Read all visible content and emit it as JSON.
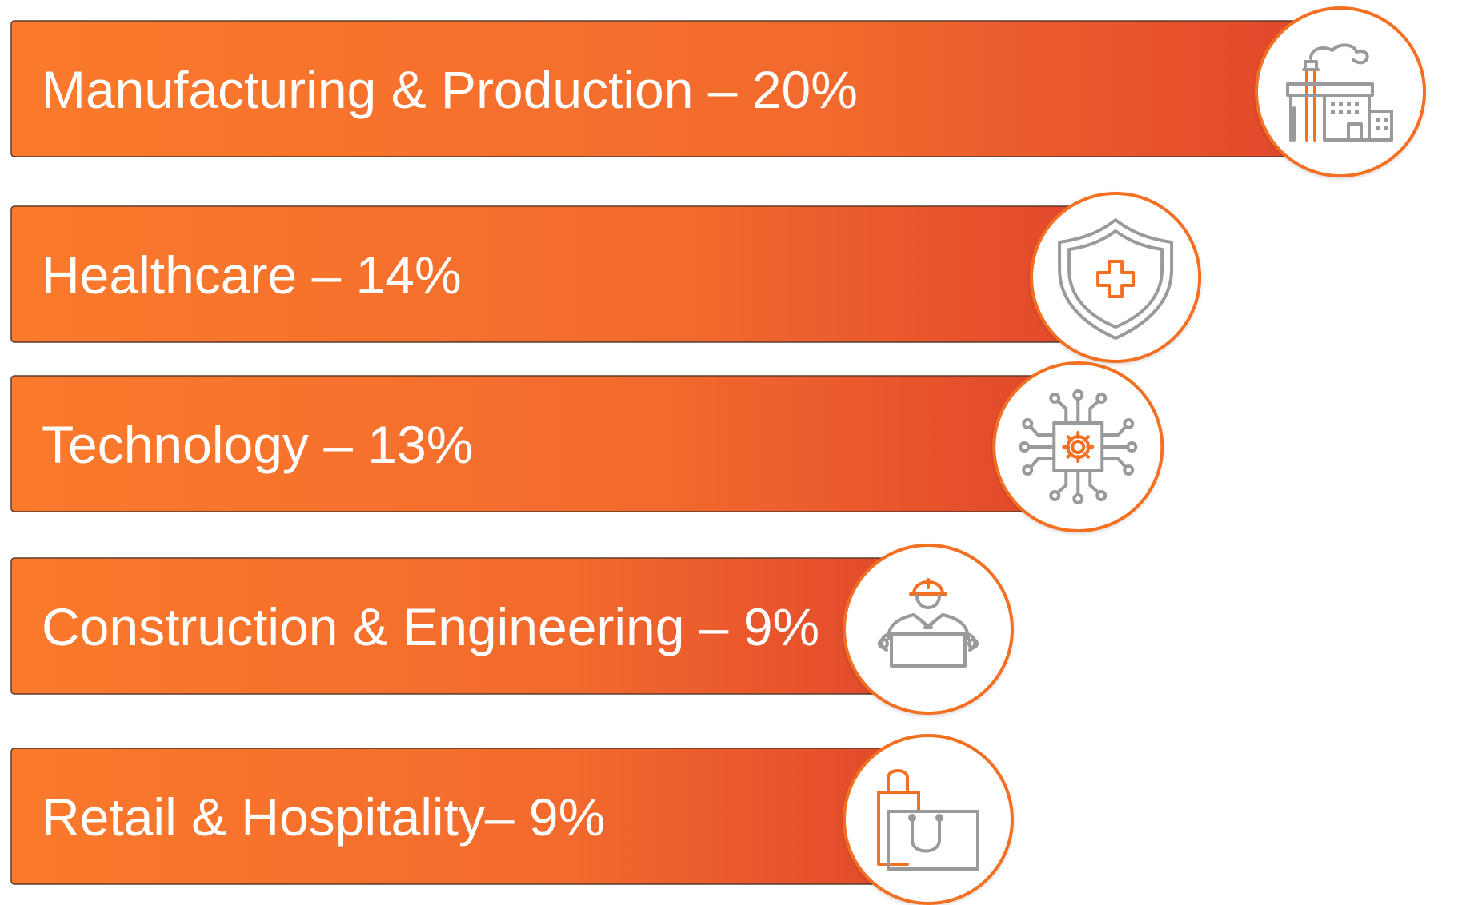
{
  "chart_data": {
    "type": "bar",
    "orientation": "horizontal",
    "categories": [
      "Manufacturing & Production",
      "Healthcare",
      "Technology",
      "Construction & Engineering",
      "Retail & Hospitality"
    ],
    "values": [
      20,
      14,
      13,
      9,
      9
    ],
    "unit": "%",
    "labels": [
      "Manufacturing & Production – 20%",
      "Healthcare – 14%",
      "Technology – 13%",
      "Construction & Engineering – 9%",
      "Retail & Hospitality– 9%"
    ],
    "icons": [
      "factory-icon",
      "health-shield-icon",
      "circuit-chip-icon",
      "construction-worker-icon",
      "shopping-bag-icon"
    ],
    "colors": {
      "bar_start": "#fb7a2c",
      "bar_mid": "#f26a2d",
      "bar_end": "#e0442c",
      "circle_border": "#f37021",
      "icon_grey": "#9a9a9a",
      "icon_accent": "#f37021",
      "text": "#ffffff"
    },
    "grid": false,
    "legend": "none"
  }
}
